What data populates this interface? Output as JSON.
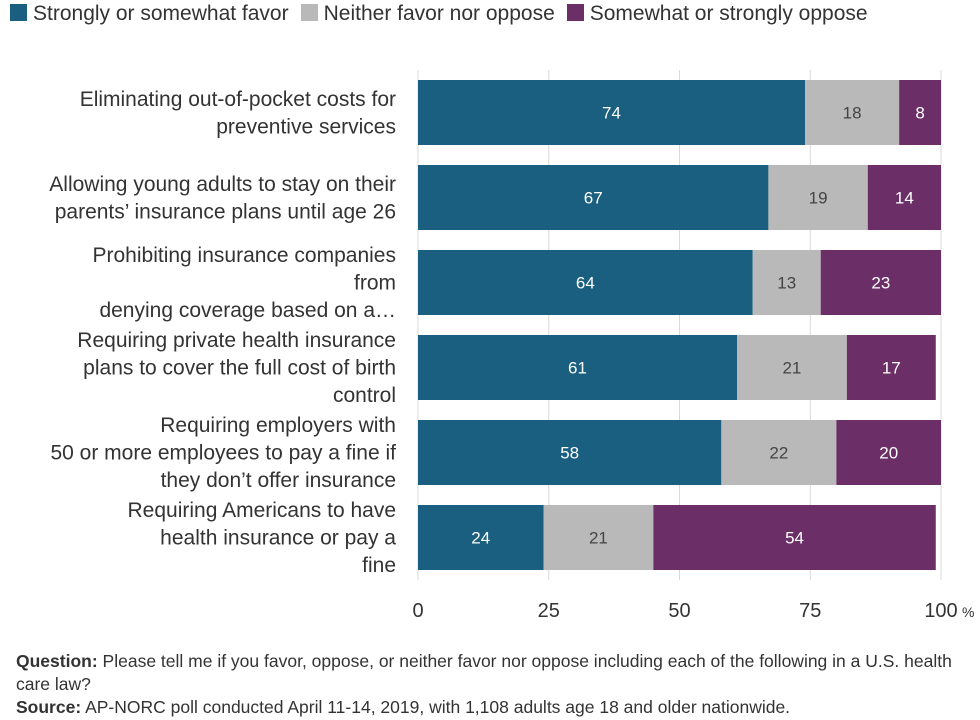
{
  "legend": [
    {
      "label": "Strongly or somewhat favor",
      "color": "#1a5f80"
    },
    {
      "label": "Neither favor nor oppose",
      "color": "#b9b9b9"
    },
    {
      "label": "Somewhat or strongly oppose",
      "color": "#6b2e67"
    }
  ],
  "chart_data": {
    "type": "bar",
    "orientation": "horizontal",
    "stacked": true,
    "categories": [
      [
        "Eliminating out-of-pocket costs for",
        "preventive services"
      ],
      [
        "Allowing young adults to stay on their",
        "parents’ insurance plans until age 26"
      ],
      [
        "Prohibiting insurance companies",
        "from",
        "denying coverage based on a…"
      ],
      [
        "Requiring private health insurance",
        "plans to cover the full cost of birth",
        "control"
      ],
      [
        "Requiring employers with",
        "50 or more employees to pay a fine if",
        "they don’t offer insurance"
      ],
      [
        "Requiring Americans to have",
        "health insurance or pay a",
        "fine"
      ]
    ],
    "series": [
      {
        "name": "Strongly or somewhat favor",
        "color": "#1a5f80",
        "values": [
          74,
          67,
          64,
          61,
          58,
          24
        ]
      },
      {
        "name": "Neither favor nor oppose",
        "color": "#b9b9b9",
        "values": [
          18,
          19,
          13,
          21,
          22,
          21
        ]
      },
      {
        "name": "Somewhat or strongly oppose",
        "color": "#6b2e67",
        "values": [
          8,
          14,
          23,
          17,
          20,
          54
        ]
      }
    ],
    "xlim": [
      0,
      100
    ],
    "xticks": [
      0,
      25,
      50,
      75,
      100
    ],
    "x_unit": "%",
    "grid": true
  },
  "footnote": {
    "question_label": "Question:",
    "question_text": "Please tell me if you favor, oppose, or neither favor nor oppose including each of the following in a U.S. health care law?",
    "source_label": "Source:",
    "source_text": "AP-NORC poll conducted April 11-14, 2019, with 1,108 adults age 18 and older nationwide."
  }
}
